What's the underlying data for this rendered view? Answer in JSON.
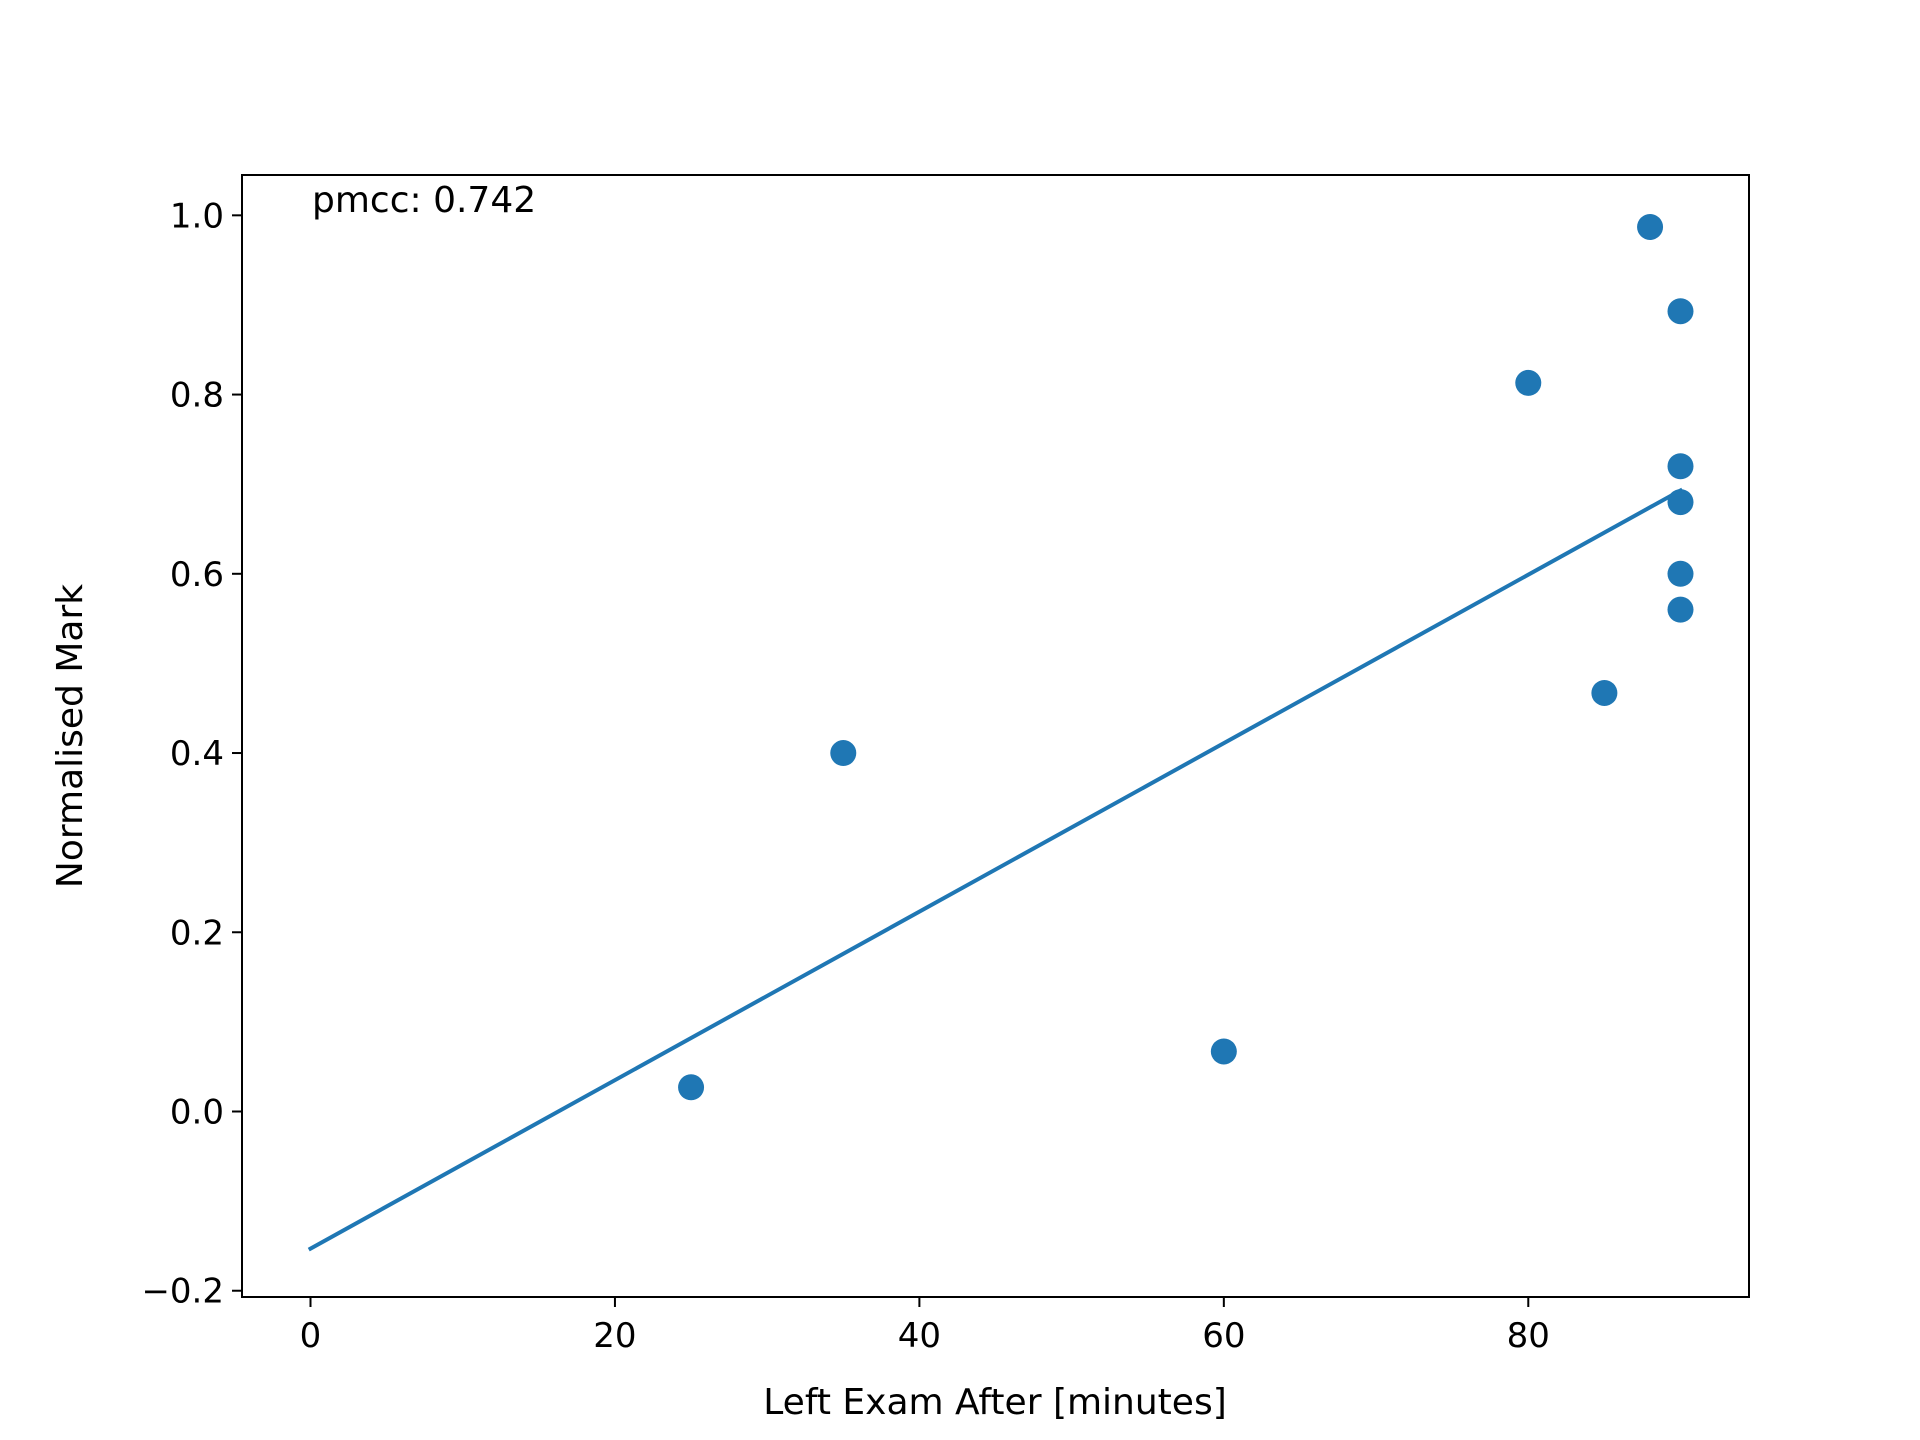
{
  "chart_data": {
    "type": "scatter",
    "xlabel": "Left Exam After [minutes]",
    "ylabel": "Normalised Mark",
    "annotation": "pmcc: 0.742",
    "xlim": [
      -4.5,
      94.5
    ],
    "ylim": [
      -0.207,
      1.045
    ],
    "xticks": [
      0,
      20,
      40,
      60,
      80
    ],
    "xtick_labels": [
      "0",
      "20",
      "40",
      "60",
      "80"
    ],
    "yticks": [
      -0.2,
      0.0,
      0.2,
      0.4,
      0.6,
      0.8,
      1.0
    ],
    "ytick_labels": [
      "−0.2",
      "0.0",
      "0.2",
      "0.4",
      "0.6",
      "0.8",
      "1.0"
    ],
    "grid": false,
    "color": "#1f77b4",
    "points": [
      {
        "x": 25,
        "y": 0.027
      },
      {
        "x": 35,
        "y": 0.4
      },
      {
        "x": 60,
        "y": 0.067
      },
      {
        "x": 80,
        "y": 0.813
      },
      {
        "x": 85,
        "y": 0.467
      },
      {
        "x": 88,
        "y": 0.987
      },
      {
        "x": 90,
        "y": 0.893
      },
      {
        "x": 90,
        "y": 0.72
      },
      {
        "x": 90,
        "y": 0.68
      },
      {
        "x": 90,
        "y": 0.6
      },
      {
        "x": 90,
        "y": 0.56
      }
    ],
    "fit_line": {
      "x": [
        0,
        90
      ],
      "y": [
        -0.153,
        0.693
      ]
    }
  }
}
